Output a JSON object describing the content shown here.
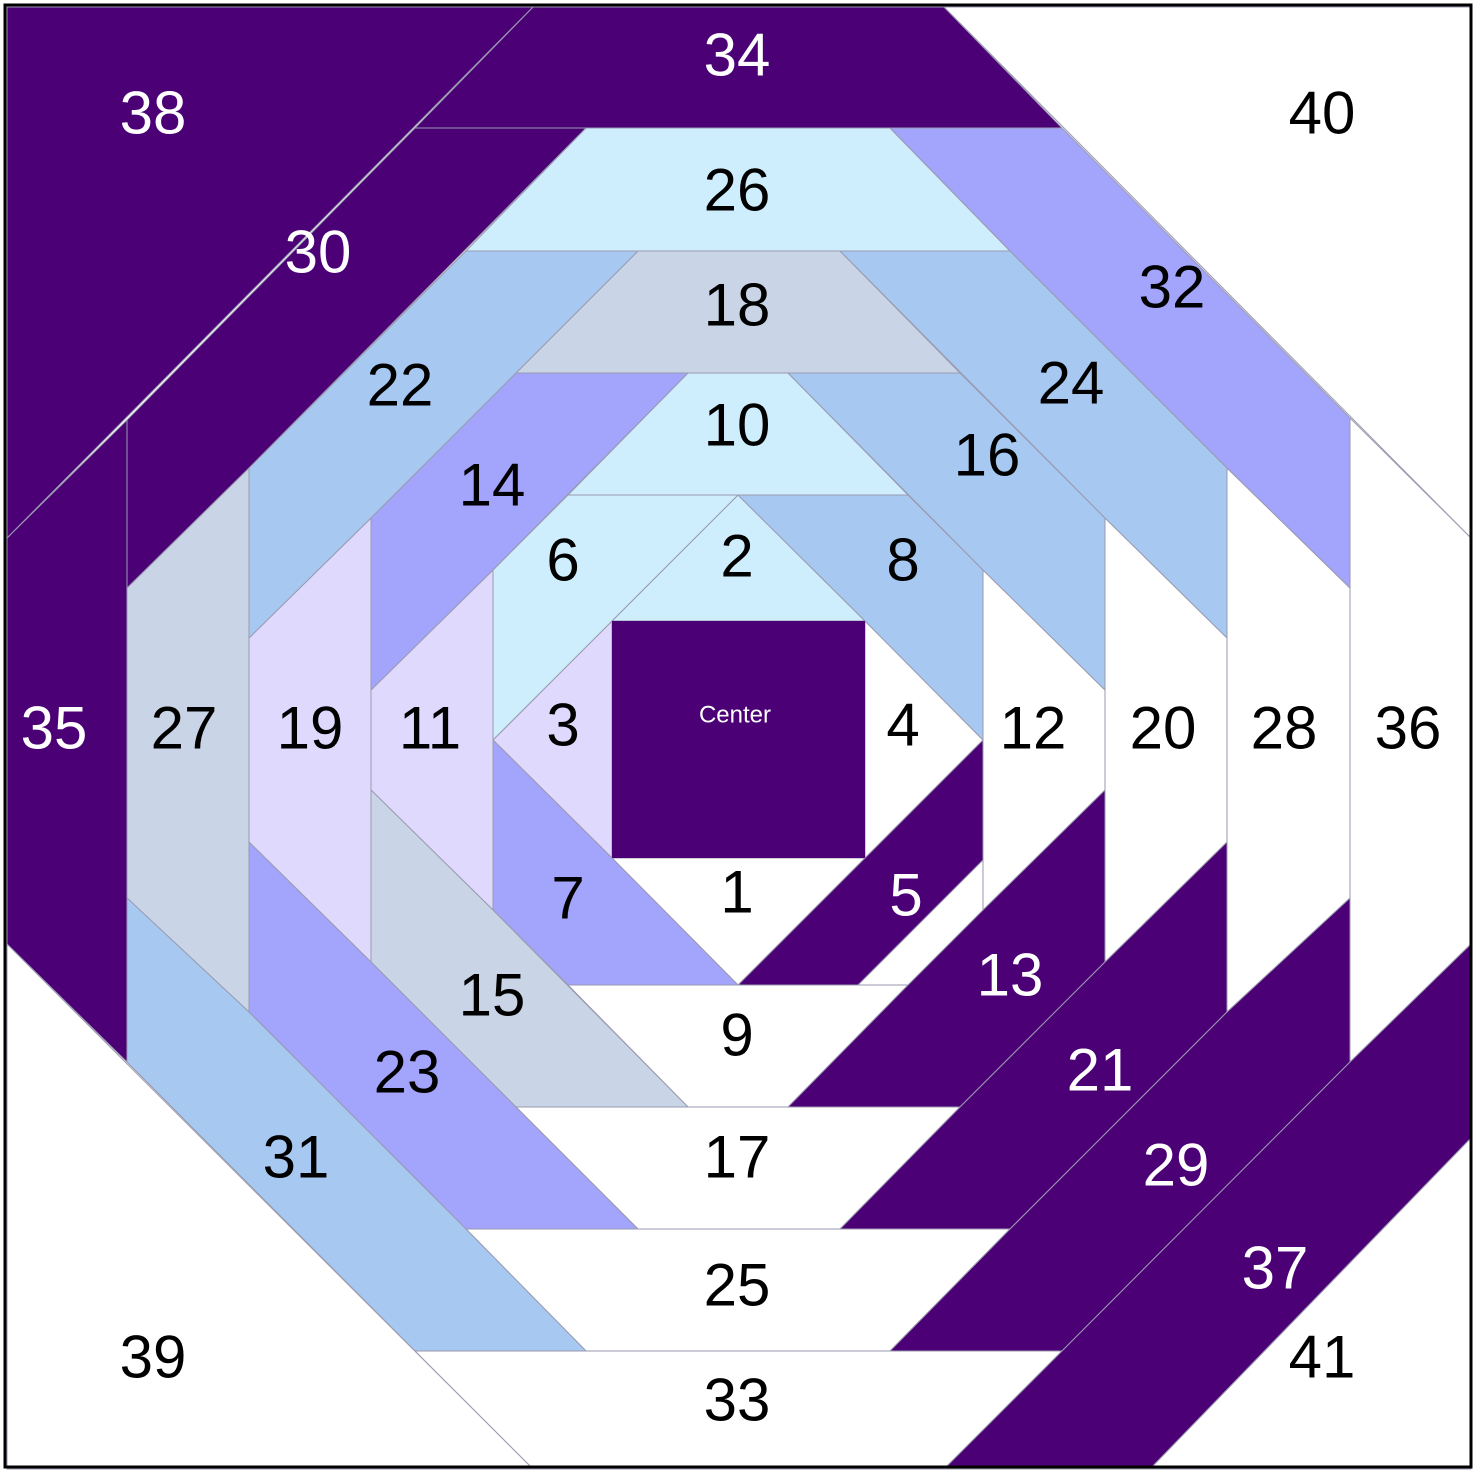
{
  "center_label": "Center",
  "colors": {
    "dark_purple": "#4b0075",
    "periwinkle": "#a3a4fb",
    "light_blue": "#a7c9f1",
    "pale_blue": "#cfeefd",
    "gray_blue": "#c9d5e6",
    "lavender": "#dfd9fd",
    "white": "#ffffff",
    "outline": "#000000"
  },
  "pieces": [
    {
      "n": "1",
      "color": "white"
    },
    {
      "n": "2",
      "color": "pale_blue"
    },
    {
      "n": "3",
      "color": "lavender"
    },
    {
      "n": "4",
      "color": "white"
    },
    {
      "n": "5",
      "color": "dark_purple"
    },
    {
      "n": "6",
      "color": "pale_blue"
    },
    {
      "n": "7",
      "color": "periwinkle"
    },
    {
      "n": "8",
      "color": "light_blue"
    },
    {
      "n": "9",
      "color": "white"
    },
    {
      "n": "10",
      "color": "pale_blue"
    },
    {
      "n": "11",
      "color": "lavender"
    },
    {
      "n": "12",
      "color": "white"
    },
    {
      "n": "13",
      "color": "dark_purple"
    },
    {
      "n": "14",
      "color": "periwinkle"
    },
    {
      "n": "15",
      "color": "gray_blue"
    },
    {
      "n": "16",
      "color": "light_blue"
    },
    {
      "n": "17",
      "color": "white"
    },
    {
      "n": "18",
      "color": "gray_blue"
    },
    {
      "n": "19",
      "color": "lavender"
    },
    {
      "n": "20",
      "color": "white"
    },
    {
      "n": "21",
      "color": "dark_purple"
    },
    {
      "n": "22",
      "color": "light_blue"
    },
    {
      "n": "23",
      "color": "periwinkle"
    },
    {
      "n": "24",
      "color": "light_blue"
    },
    {
      "n": "25",
      "color": "white"
    },
    {
      "n": "26",
      "color": "pale_blue"
    },
    {
      "n": "27",
      "color": "gray_blue"
    },
    {
      "n": "28",
      "color": "white"
    },
    {
      "n": "29",
      "color": "dark_purple"
    },
    {
      "n": "30",
      "color": "dark_purple"
    },
    {
      "n": "31",
      "color": "light_blue"
    },
    {
      "n": "32",
      "color": "periwinkle"
    },
    {
      "n": "33",
      "color": "white"
    },
    {
      "n": "34",
      "color": "dark_purple"
    },
    {
      "n": "35",
      "color": "dark_purple"
    },
    {
      "n": "36",
      "color": "white"
    },
    {
      "n": "37",
      "color": "dark_purple"
    },
    {
      "n": "38",
      "color": "dark_purple"
    },
    {
      "n": "39",
      "color": "white"
    },
    {
      "n": "40",
      "color": "white"
    },
    {
      "n": "41",
      "color": "white"
    }
  ]
}
